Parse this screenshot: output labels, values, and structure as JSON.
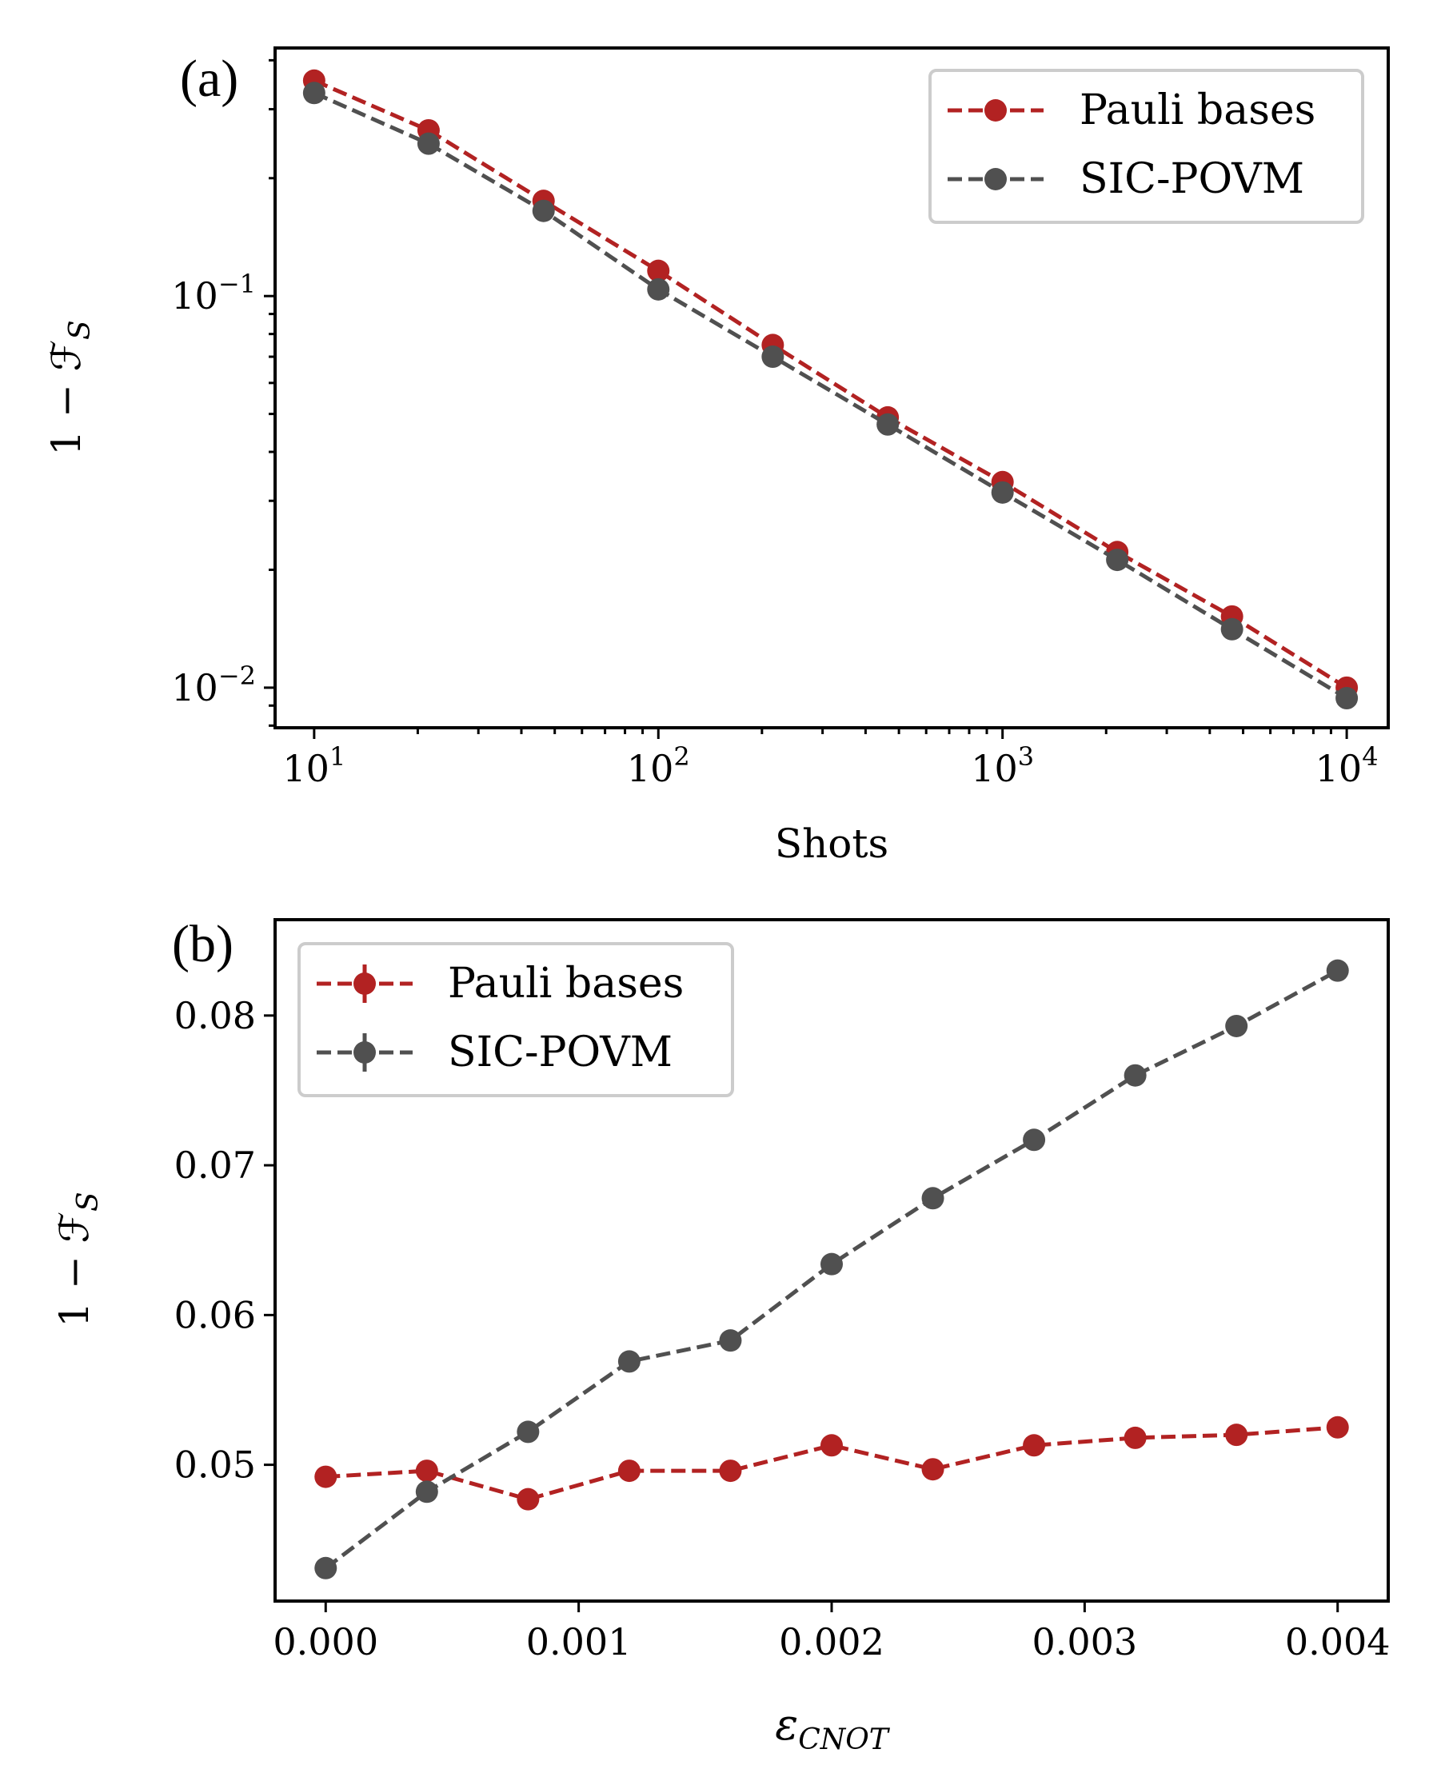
{
  "chart_data": [
    {
      "type": "line",
      "panel_label": "(a)",
      "xlabel": "Shots",
      "ylabel": "1 − ℱ",
      "ylabel_sub": "S",
      "xscale": "log",
      "yscale": "log",
      "xlim": [
        7.7,
        13200
      ],
      "ylim": [
        0.0079,
        0.43
      ],
      "xticks": [
        {
          "value": 10,
          "base": "10",
          "exp": "1"
        },
        {
          "value": 100,
          "base": "10",
          "exp": "2"
        },
        {
          "value": 1000,
          "base": "10",
          "exp": "3"
        },
        {
          "value": 10000,
          "base": "10",
          "exp": "4"
        }
      ],
      "yticks": [
        {
          "value": 0.1,
          "base": "10",
          "exp": "−1"
        },
        {
          "value": 0.01,
          "base": "10",
          "exp": "−2"
        }
      ],
      "legend_position": "upper right",
      "x": [
        10,
        21.5,
        46.4,
        100,
        215,
        464,
        1000,
        2154,
        4642,
        10000
      ],
      "series": [
        {
          "name": "Pauli bases",
          "color": "#b22222",
          "values": [
            0.355,
            0.265,
            0.175,
            0.116,
            0.075,
            0.049,
            0.0335,
            0.0222,
            0.0152,
            0.01
          ]
        },
        {
          "name": "SIC-POVM",
          "color": "#505050",
          "values": [
            0.33,
            0.245,
            0.165,
            0.104,
            0.07,
            0.047,
            0.0315,
            0.0212,
            0.0141,
            0.0094
          ]
        }
      ]
    },
    {
      "type": "line",
      "panel_label": "(b)",
      "xlabel": "ε",
      "xlabel_sub": "CNOT",
      "ylabel": "1 − ℱ",
      "ylabel_sub": "S",
      "xlim": [
        -0.0002,
        0.0042
      ],
      "ylim": [
        0.0409,
        0.0864
      ],
      "xticks": [
        "0.000",
        "0.001",
        "0.002",
        "0.003",
        "0.004"
      ],
      "yticks": [
        "0.05",
        "0.06",
        "0.07",
        "0.08"
      ],
      "legend_position": "upper left",
      "x": [
        0.0,
        0.0004,
        0.0008,
        0.0012,
        0.0016,
        0.002,
        0.0024,
        0.0028,
        0.0032,
        0.0036,
        0.004
      ],
      "series": [
        {
          "name": "Pauli bases",
          "color": "#b22222",
          "values": [
            0.0492,
            0.0496,
            0.0477,
            0.0496,
            0.0496,
            0.0513,
            0.0497,
            0.0513,
            0.0518,
            0.052,
            0.0525
          ],
          "error": [
            0.0006,
            0.0006,
            0.0006,
            0.0006,
            0.0006,
            0.0006,
            0.0006,
            0.0006,
            0.0006,
            0.0006,
            0.0006
          ]
        },
        {
          "name": "SIC-POVM",
          "color": "#505050",
          "values": [
            0.0431,
            0.0482,
            0.0522,
            0.0569,
            0.0583,
            0.0634,
            0.0678,
            0.0717,
            0.076,
            0.0793,
            0.083
          ],
          "error": [
            0.0007,
            0.0007,
            0.0007,
            0.0007,
            0.0007,
            0.0007,
            0.0007,
            0.0007,
            0.0007,
            0.0007,
            0.0007
          ]
        }
      ]
    }
  ]
}
